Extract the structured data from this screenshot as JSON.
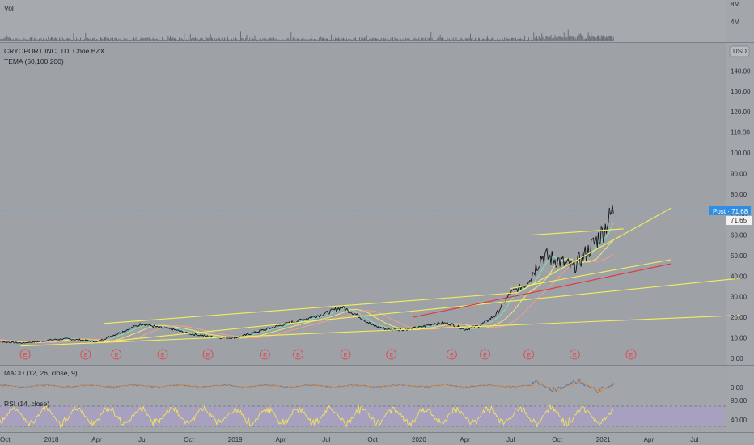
{
  "chart_data": {
    "type": "line",
    "panes": {
      "volume": {
        "label": "Vol",
        "y_ticks": [
          "8M",
          "4M"
        ]
      },
      "price": {
        "title": "CRYOPORT INC, 1D, Cboe BZX",
        "indicator": "TEMA (50,100,200)",
        "currency": "USD",
        "y_ticks": [
          0,
          10,
          20,
          30,
          40,
          50,
          60,
          70,
          80,
          90,
          100,
          110,
          120,
          130,
          140
        ],
        "y_tick_labels": [
          "0.00",
          "10.00",
          "20.00",
          "30.00",
          "40.00",
          "50.00",
          "60.00",
          "70.00",
          "80.00",
          "90.00",
          "100.00",
          "110.00",
          "120.00",
          "130.00",
          "140.00"
        ],
        "ylim": [
          -2,
          150
        ],
        "post_label": "Post · 71.68",
        "post_value": 71.68,
        "last_label": "71.65",
        "last_value": 71.65,
        "earnings_marker": "E",
        "earnings_dates": [
          "2017-11-10",
          "2018-03-10",
          "2018-05-10",
          "2018-08-10",
          "2018-11-08",
          "2019-03-01",
          "2019-05-06",
          "2019-08-08",
          "2019-11-07",
          "2020-03-06",
          "2020-05-11",
          "2020-08-06",
          "2020-11-05",
          "2021-02-25"
        ]
      },
      "macd": {
        "label": "MACD (12, 26, close, 9)",
        "y_ticks": [
          "0.00"
        ]
      },
      "rsi": {
        "label": "RSI (14, close)",
        "y_ticks": [
          "80.00",
          "40.00"
        ]
      }
    },
    "x_ticks": [
      {
        "date": "2017-10-01",
        "label": "Oct"
      },
      {
        "date": "2018-01-01",
        "label": "2018"
      },
      {
        "date": "2018-04-01",
        "label": "Apr"
      },
      {
        "date": "2018-07-01",
        "label": "Jul"
      },
      {
        "date": "2018-10-01",
        "label": "Oct"
      },
      {
        "date": "2019-01-01",
        "label": "2019"
      },
      {
        "date": "2019-04-01",
        "label": "Apr"
      },
      {
        "date": "2019-07-01",
        "label": "Jul"
      },
      {
        "date": "2019-10-01",
        "label": "Oct"
      },
      {
        "date": "2020-01-01",
        "label": "2020"
      },
      {
        "date": "2020-04-01",
        "label": "Apr"
      },
      {
        "date": "2020-07-01",
        "label": "Jul"
      },
      {
        "date": "2020-10-01",
        "label": "Oct"
      },
      {
        "date": "2021-01-01",
        "label": "2021"
      },
      {
        "date": "2021-04-01",
        "label": "Apr"
      },
      {
        "date": "2021-07-01",
        "label": "Jul"
      }
    ],
    "price_series": {
      "x": [
        "2017-09-01",
        "2017-10-01",
        "2017-11-01",
        "2017-12-01",
        "2018-01-01",
        "2018-02-01",
        "2018-03-01",
        "2018-04-01",
        "2018-05-01",
        "2018-06-01",
        "2018-07-01",
        "2018-08-01",
        "2018-09-01",
        "2018-10-01",
        "2018-11-01",
        "2018-12-01",
        "2019-01-01",
        "2019-02-01",
        "2019-03-01",
        "2019-04-01",
        "2019-05-01",
        "2019-06-01",
        "2019-07-01",
        "2019-08-01",
        "2019-09-01",
        "2019-10-01",
        "2019-11-01",
        "2019-12-01",
        "2020-01-01",
        "2020-02-01",
        "2020-03-01",
        "2020-04-01",
        "2020-05-01",
        "2020-06-01",
        "2020-07-01",
        "2020-08-01",
        "2020-09-01",
        "2020-10-01",
        "2020-11-01",
        "2020-12-01",
        "2021-01-01",
        "2021-01-22"
      ],
      "y": [
        9,
        8,
        7.5,
        8,
        9,
        9.5,
        9,
        8,
        11,
        14,
        17,
        15,
        14,
        12,
        11,
        10,
        10,
        12,
        14,
        16,
        18,
        20,
        22,
        25,
        21,
        16,
        14,
        14,
        15,
        17,
        17,
        14,
        16,
        21,
        32,
        36,
        50,
        48,
        44,
        52,
        62,
        73
      ]
    },
    "trendlines": [
      {
        "color": "#f3ef5c",
        "points": [
          [
            "2017-11-01",
            6
          ],
          [
            "2021-10-01",
            21
          ]
        ]
      },
      {
        "color": "#f3ef5c",
        "points": [
          [
            "2018-04-15",
            8
          ],
          [
            "2021-10-01",
            39
          ]
        ]
      },
      {
        "color": "#f3ef5c",
        "points": [
          [
            "2018-04-15",
            17
          ],
          [
            "2020-07-15",
            32
          ],
          [
            "2021-05-15",
            73
          ]
        ]
      },
      {
        "color": "#f3ef5c",
        "points": [
          [
            "2020-07-01",
            34
          ],
          [
            "2021-05-15",
            48
          ]
        ]
      },
      {
        "color": "#f3ef5c",
        "points": [
          [
            "2020-08-10",
            60
          ],
          [
            "2021-02-10",
            63
          ]
        ]
      },
      {
        "color": "#e8303a",
        "points": [
          [
            "2019-12-20",
            20
          ],
          [
            "2021-05-15",
            46
          ]
        ]
      }
    ]
  }
}
